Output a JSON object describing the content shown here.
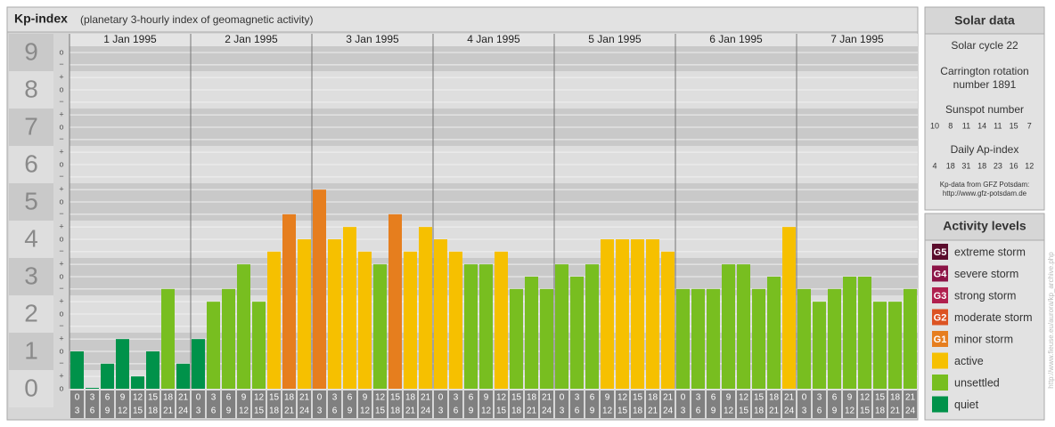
{
  "header": {
    "title": "Kp-index",
    "subtitle": "(planetary 3-hourly index of geomagnetic activity)"
  },
  "chart_data": {
    "type": "bar",
    "days": [
      "1 Jan 1995",
      "2 Jan 1995",
      "3 Jan 1995",
      "4 Jan 1995",
      "5 Jan 1995",
      "6 Jan 1995",
      "7 Jan 1995"
    ],
    "interval_starts": [
      0,
      3,
      6,
      9,
      12,
      15,
      18,
      21
    ],
    "interval_ends": [
      3,
      6,
      9,
      12,
      15,
      18,
      21,
      24
    ],
    "values": [
      1,
      0,
      0.67,
      1.33,
      0.33,
      1,
      2.67,
      0.67,
      1.33,
      2.33,
      2.67,
      3.33,
      2.33,
      3.67,
      4.67,
      4,
      5.33,
      4,
      4.33,
      3.67,
      3.33,
      4.67,
      3.67,
      4.33,
      4,
      3.67,
      3.33,
      3.33,
      3.67,
      2.67,
      3,
      2.67,
      3.33,
      3,
      3.33,
      4,
      4,
      4,
      4,
      3.67,
      2.67,
      2.67,
      2.67,
      3.33,
      3.33,
      2.67,
      3,
      4.33,
      2.67,
      2.33,
      2.67,
      3,
      3,
      2.33,
      2.33,
      2.67
    ],
    "colors": [
      "#00924a",
      "#00924a",
      "#00924a",
      "#00924a",
      "#00924a",
      "#00924a",
      "#78be20",
      "#00924a",
      "#00924a",
      "#78be20",
      "#78be20",
      "#78be20",
      "#78be20",
      "#f6c000",
      "#e67e1e",
      "#f6c000",
      "#e67e1e",
      "#f6c000",
      "#f6c000",
      "#f6c000",
      "#78be20",
      "#e67e1e",
      "#f6c000",
      "#f6c000",
      "#f6c000",
      "#f6c000",
      "#78be20",
      "#78be20",
      "#f6c000",
      "#78be20",
      "#78be20",
      "#78be20",
      "#78be20",
      "#78be20",
      "#78be20",
      "#f6c000",
      "#f6c000",
      "#f6c000",
      "#f6c000",
      "#f6c000",
      "#78be20",
      "#78be20",
      "#78be20",
      "#78be20",
      "#78be20",
      "#78be20",
      "#78be20",
      "#f6c000",
      "#78be20",
      "#78be20",
      "#78be20",
      "#78be20",
      "#78be20",
      "#78be20",
      "#78be20",
      "#78be20"
    ],
    "ylim": [
      0,
      9.5
    ],
    "yticks": [
      0,
      1,
      2,
      3,
      4,
      5,
      6,
      7,
      8,
      9
    ],
    "minor_ticks": [
      {
        "value": 9,
        "label": "o"
      },
      {
        "value": 8.67,
        "label": "−"
      },
      {
        "value": 8.33,
        "label": "+"
      },
      {
        "value": 8,
        "label": "o"
      },
      {
        "value": 7.67,
        "label": "−"
      },
      {
        "value": 7.33,
        "label": "+"
      },
      {
        "value": 7,
        "label": "o"
      },
      {
        "value": 6.67,
        "label": "−"
      },
      {
        "value": 6.33,
        "label": "+"
      },
      {
        "value": 6,
        "label": "o"
      },
      {
        "value": 5.67,
        "label": "−"
      },
      {
        "value": 5.33,
        "label": "+"
      },
      {
        "value": 5,
        "label": "o"
      },
      {
        "value": 4.67,
        "label": "−"
      },
      {
        "value": 4.33,
        "label": "+"
      },
      {
        "value": 4,
        "label": "o"
      },
      {
        "value": 3.67,
        "label": "−"
      },
      {
        "value": 3.33,
        "label": "+"
      },
      {
        "value": 3,
        "label": "o"
      },
      {
        "value": 2.67,
        "label": "−"
      },
      {
        "value": 2.33,
        "label": "+"
      },
      {
        "value": 2,
        "label": "o"
      },
      {
        "value": 1.67,
        "label": "−"
      },
      {
        "value": 1.33,
        "label": "+"
      },
      {
        "value": 1,
        "label": "o"
      },
      {
        "value": 0.67,
        "label": "−"
      },
      {
        "value": 0.33,
        "label": "+"
      },
      {
        "value": 0,
        "label": "o"
      }
    ],
    "grid": true
  },
  "solar_data": {
    "title": "Solar data",
    "solar_cycle": "Solar cycle 22",
    "carrington": [
      "Carrington rotation",
      "number 1891"
    ],
    "sunspot_label": "Sunspot number",
    "sunspot_numbers": [
      10,
      8,
      11,
      14,
      11,
      15,
      7
    ],
    "ap_label": "Daily Ap-index",
    "ap_values": [
      4,
      18,
      31,
      18,
      23,
      16,
      12
    ],
    "source": [
      "Kp-data from GFZ Potsdam:",
      "http://www.gfz-potsdam.de"
    ]
  },
  "activity_levels": {
    "title": "Activity levels",
    "levels": [
      {
        "badge": "G5",
        "label": "extreme storm",
        "color": "#5a0c2c"
      },
      {
        "badge": "G4",
        "label": "severe storm",
        "color": "#8c1446"
      },
      {
        "badge": "G3",
        "label": "strong storm",
        "color": "#b0204e"
      },
      {
        "badge": "G2",
        "label": "moderate storm",
        "color": "#dc5322"
      },
      {
        "badge": "G1",
        "label": "minor storm",
        "color": "#e67e1e"
      },
      {
        "label": "active",
        "color": "#f6c000"
      },
      {
        "label": "unsettled",
        "color": "#78be20"
      },
      {
        "label": "quiet",
        "color": "#00924a"
      }
    ]
  },
  "watermark": "http://www.fieuse.eu/aurora/kp_archive.php"
}
